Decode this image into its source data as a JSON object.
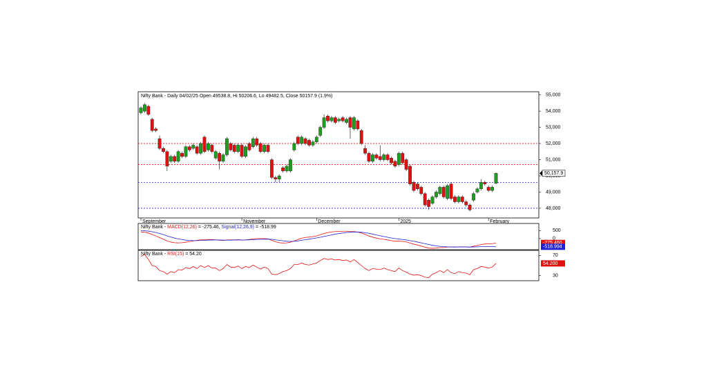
{
  "chart_data": [
    {
      "type": "candlestick",
      "title": "Nifty Bank - Daily 04/02/25 Open 49538.8, Hi 50206.6, Lo 49482.5, Close 50157.9 (1.9%)",
      "categories": [
        "September",
        null,
        null,
        null,
        null,
        null,
        null,
        null,
        null,
        null,
        null,
        null,
        null,
        null,
        null,
        null,
        null,
        null,
        null,
        null,
        null,
        null,
        null,
        null,
        null,
        null,
        null,
        "November",
        null,
        null,
        null,
        null,
        null,
        null,
        null,
        null,
        null,
        null,
        null,
        null,
        null,
        null,
        null,
        null,
        null,
        null,
        null,
        "December",
        null,
        null,
        null,
        null,
        null,
        null,
        null,
        null,
        null,
        null,
        null,
        null,
        null,
        null,
        null,
        null,
        null,
        null,
        null,
        null,
        null,
        "2025",
        null,
        null,
        null,
        null,
        null,
        null,
        null,
        null,
        null,
        null,
        null,
        null,
        null,
        null,
        null,
        null,
        null,
        null,
        null,
        null,
        null,
        null,
        null,
        "February",
        null,
        null
      ],
      "open": [
        53900,
        54000,
        54300,
        53500,
        52900,
        52300,
        51700,
        51500,
        50900,
        51200,
        50900,
        51400,
        51200,
        51800,
        51700,
        51800,
        51400,
        52400,
        51600,
        51900,
        51100,
        51400,
        50900,
        51300,
        52000,
        51900,
        51500,
        51900,
        51200,
        52000,
        51800,
        52300,
        52000,
        51500,
        51900,
        51000,
        49900,
        49800,
        50500,
        50300,
        50300,
        51600,
        52400,
        52000,
        52300,
        52200,
        51900,
        52100,
        52500,
        53000,
        53700,
        53400,
        53600,
        53400,
        53600,
        53300,
        53600,
        52900,
        53400,
        52800,
        51700,
        51400,
        50900,
        51300,
        51200,
        51000,
        51300,
        51100,
        50900,
        50700,
        51400,
        51000,
        50600,
        49600,
        49500,
        49300,
        48900,
        48500,
        48300,
        48700,
        48900,
        49300,
        48600,
        49500,
        48700,
        48400,
        48700,
        48400,
        48200,
        48500,
        49000,
        49200,
        49600,
        49300,
        49100,
        49538.8
      ],
      "high": [
        54300,
        54500,
        54400,
        53600,
        53000,
        52500,
        51800,
        51600,
        51300,
        51300,
        51600,
        51500,
        51900,
        51900,
        52000,
        51900,
        52100,
        52500,
        52100,
        52000,
        51600,
        51500,
        51400,
        52400,
        52100,
        52000,
        52000,
        52000,
        51900,
        52100,
        52400,
        52400,
        52100,
        52000,
        52000,
        51100,
        50000,
        50100,
        50600,
        50700,
        51100,
        52100,
        52500,
        52500,
        52400,
        52300,
        52200,
        52500,
        53100,
        53800,
        53800,
        53700,
        53700,
        53600,
        53700,
        53600,
        53700,
        53700,
        53500,
        52900,
        51900,
        51500,
        51400,
        51400,
        51900,
        51400,
        51400,
        51200,
        51000,
        51500,
        51500,
        51100,
        50700,
        49700,
        49600,
        49400,
        49000,
        48600,
        48800,
        49100,
        49400,
        49400,
        49500,
        49600,
        48800,
        48800,
        48800,
        48500,
        48300,
        49000,
        49300,
        49800,
        49700,
        49400,
        49400,
        50206.6
      ],
      "low": [
        53800,
        53900,
        53700,
        52700,
        52700,
        51600,
        51400,
        50300,
        50800,
        50800,
        50800,
        51100,
        51100,
        51500,
        51600,
        51300,
        51300,
        51400,
        51500,
        51400,
        51000,
        50400,
        50800,
        51200,
        51500,
        51400,
        51400,
        51100,
        51100,
        51500,
        51700,
        51800,
        51400,
        51400,
        51400,
        49800,
        49600,
        49600,
        50200,
        50200,
        50200,
        51500,
        51900,
        51900,
        51900,
        51800,
        51800,
        52000,
        52400,
        52900,
        53300,
        53300,
        53200,
        53300,
        53300,
        53200,
        52300,
        52800,
        52800,
        51900,
        51300,
        50800,
        50800,
        51000,
        50900,
        50900,
        50900,
        50700,
        50500,
        50600,
        50700,
        50300,
        49400,
        49000,
        49100,
        48800,
        48100,
        47900,
        48200,
        48600,
        48800,
        48600,
        48500,
        48500,
        48300,
        48300,
        48300,
        48100,
        47800,
        48400,
        48900,
        49100,
        49400,
        49000,
        49000,
        49482.5
      ],
      "close": [
        54200,
        54400,
        53800,
        52800,
        52800,
        51700,
        51500,
        50600,
        51200,
        50900,
        51500,
        51200,
        51800,
        51600,
        51900,
        51400,
        52000,
        51500,
        52000,
        51500,
        51500,
        50900,
        51300,
        52300,
        51600,
        51500,
        51900,
        51200,
        51800,
        51600,
        52300,
        51900,
        51500,
        51900,
        51500,
        49900,
        49800,
        50000,
        50300,
        50600,
        51000,
        52000,
        52000,
        52400,
        52000,
        51900,
        52100,
        52400,
        53000,
        53600,
        53400,
        53600,
        53300,
        53500,
        53400,
        53500,
        53000,
        53600,
        52900,
        52000,
        51400,
        50900,
        51300,
        51100,
        51000,
        51300,
        51000,
        50800,
        50600,
        51400,
        50800,
        50400,
        49500,
        49100,
        49200,
        48900,
        48200,
        48100,
        48700,
        49000,
        49300,
        48700,
        49400,
        48600,
        48400,
        48700,
        48400,
        48200,
        47900,
        48900,
        49200,
        49600,
        49500,
        49100,
        49300,
        50157.9
      ],
      "up_color": "#1e9e1e",
      "down_color": "#e01010",
      "close_label": "50,157.9",
      "hlines": [
        {
          "value": 52000,
          "color": "#e01010"
        },
        {
          "value": 50700,
          "color": "#e01010"
        },
        {
          "value": 49600,
          "color": "#2020d0"
        },
        {
          "value": 48000,
          "color": "#2020d0"
        }
      ],
      "ylim": [
        47400,
        55200
      ],
      "yticks": [
        {
          "value": 48000,
          "label": "48,000"
        },
        {
          "value": 49000,
          "label": "49,000"
        },
        {
          "value": 50000,
          "label": "50,000"
        },
        {
          "value": 51000,
          "label": "51,000"
        },
        {
          "value": 52000,
          "label": "52,000"
        },
        {
          "value": 53000,
          "label": "53,000"
        },
        {
          "value": 54000,
          "label": "54,000"
        },
        {
          "value": 55000,
          "label": "55,000"
        }
      ]
    },
    {
      "type": "line",
      "title_parts": [
        {
          "text": "Nifty Bank - ",
          "color": "#000000"
        },
        {
          "text": "MACD(12,26)",
          "color": "#e01010"
        },
        {
          "text": " = -275.46, ",
          "color": "#000000"
        },
        {
          "text": "Signal(12,26,9)",
          "color": "#2020d0"
        },
        {
          "text": " = -518.99",
          "color": "#000000"
        }
      ],
      "series": [
        {
          "name": "MACD(12,26)",
          "color": "#e01010",
          "last_label": "-275.460",
          "values": [
            420,
            400,
            350,
            260,
            160,
            60,
            -40,
            -150,
            -220,
            -260,
            -270,
            -260,
            -230,
            -190,
            -150,
            -110,
            -80,
            -60,
            -60,
            -60,
            -80,
            -110,
            -120,
            -90,
            -80,
            -80,
            -70,
            -90,
            -80,
            -60,
            -20,
            0,
            0,
            0,
            -20,
            -110,
            -200,
            -260,
            -280,
            -270,
            -230,
            -150,
            -60,
            20,
            70,
            90,
            120,
            170,
            240,
            320,
            380,
            420,
            440,
            450,
            460,
            460,
            440,
            440,
            410,
            350,
            260,
            160,
            90,
            30,
            -20,
            -50,
            -90,
            -130,
            -170,
            -160,
            -180,
            -210,
            -280,
            -350,
            -410,
            -470,
            -540,
            -600,
            -610,
            -600,
            -570,
            -570,
            -530,
            -530,
            -540,
            -520,
            -520,
            -520,
            -540,
            -480,
            -440,
            -380,
            -340,
            -330,
            -320,
            -275.46
          ]
        },
        {
          "name": "Signal(12,26,9)",
          "color": "#2020d0",
          "last_label": "-518.994",
          "values": [
            500,
            490,
            470,
            430,
            380,
            320,
            250,
            170,
            100,
            30,
            -20,
            -60,
            -100,
            -120,
            -130,
            -130,
            -120,
            -110,
            -100,
            -90,
            -90,
            -90,
            -100,
            -100,
            -100,
            -90,
            -90,
            -90,
            -90,
            -80,
            -70,
            -60,
            -50,
            -40,
            -35,
            -50,
            -80,
            -110,
            -140,
            -170,
            -180,
            -175,
            -150,
            -110,
            -70,
            -40,
            0,
            40,
            80,
            130,
            180,
            230,
            280,
            320,
            350,
            380,
            400,
            410,
            410,
            400,
            370,
            330,
            280,
            230,
            180,
            130,
            80,
            40,
            0,
            -30,
            -60,
            -90,
            -130,
            -170,
            -220,
            -270,
            -320,
            -370,
            -420,
            -460,
            -490,
            -510,
            -520,
            -530,
            -530,
            -530,
            -530,
            -530,
            -535,
            -530,
            -520,
            -510,
            -500,
            -500,
            -505,
            -518.99
          ]
        }
      ],
      "ylim": [
        -700,
        950
      ],
      "yticks": [
        0,
        500
      ]
    },
    {
      "type": "line",
      "title_parts": [
        {
          "text": "Nifty Bank - ",
          "color": "#000000"
        },
        {
          "text": "RSI(15)",
          "color": "#e01010"
        },
        {
          "text": " = 54.20",
          "color": "#000000"
        }
      ],
      "series": [
        {
          "name": "RSI(15)",
          "color": "#e01010",
          "last_label": "54.200",
          "values": [
            68,
            72,
            62,
            50,
            48,
            40,
            38,
            33,
            38,
            36,
            42,
            41,
            46,
            44,
            48,
            44,
            50,
            46,
            50,
            45,
            45,
            40,
            44,
            52,
            47,
            46,
            49,
            44,
            48,
            46,
            51,
            47,
            43,
            47,
            44,
            33,
            32,
            34,
            38,
            40,
            44,
            52,
            52,
            55,
            52,
            51,
            53,
            55,
            60,
            64,
            62,
            63,
            61,
            62,
            60,
            61,
            57,
            62,
            56,
            50,
            44,
            40,
            44,
            43,
            42,
            45,
            42,
            40,
            38,
            45,
            40,
            37,
            33,
            31,
            32,
            30,
            27,
            26,
            33,
            36,
            40,
            36,
            42,
            36,
            34,
            38,
            36,
            35,
            32,
            42,
            44,
            48,
            47,
            45,
            47,
            54.2
          ]
        }
      ],
      "ylim": [
        20,
        80
      ],
      "yticks": [
        30,
        70
      ]
    }
  ]
}
